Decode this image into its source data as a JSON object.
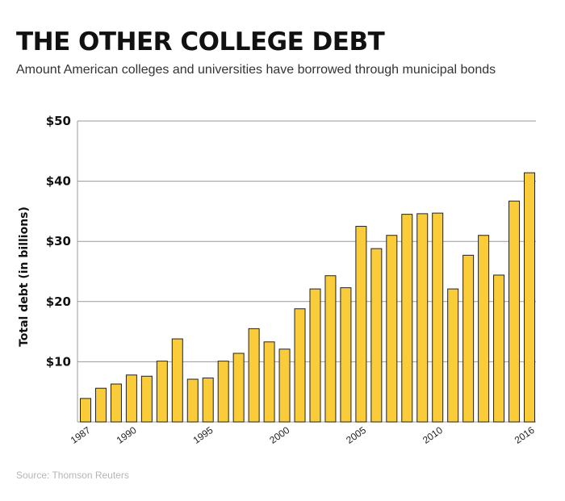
{
  "title": "THE OTHER COLLEGE DEBT",
  "subtitle": "Amount American colleges and universities have borrowed through municipal bonds",
  "source": "Source: Thomson Reuters",
  "colors": {
    "bar_fill": "#fbcc3a",
    "bar_stroke": "#222222",
    "grid": "#9a9a9a",
    "text": "#111111"
  },
  "chart_data": {
    "type": "bar",
    "title": "THE OTHER COLLEGE DEBT",
    "subtitle": "Amount American colleges and universities have borrowed through municipal bonds",
    "ylabel": "Total debt (in billions)",
    "xlabel": "",
    "ylim": [
      0,
      50
    ],
    "yticks": [
      10,
      20,
      30,
      40,
      50
    ],
    "ytick_labels": [
      "$10",
      "$20",
      "$30",
      "$40",
      "$50"
    ],
    "categories": [
      1987,
      1988,
      1989,
      1990,
      1991,
      1992,
      1993,
      1994,
      1995,
      1996,
      1997,
      1998,
      1999,
      2000,
      2001,
      2002,
      2003,
      2004,
      2005,
      2006,
      2007,
      2008,
      2009,
      2010,
      2011,
      2012,
      2013,
      2014,
      2015,
      2016
    ],
    "values": [
      3.9,
      5.6,
      6.3,
      7.8,
      7.6,
      10.1,
      13.8,
      7.1,
      7.3,
      10.1,
      11.4,
      15.5,
      13.3,
      12.1,
      18.8,
      22.1,
      24.3,
      22.3,
      32.5,
      28.8,
      31.0,
      34.5,
      34.6,
      34.7,
      22.1,
      27.7,
      31.0,
      24.4,
      36.7,
      41.4
    ],
    "xtick_labels": [
      {
        "year": 1987,
        "label": "1987"
      },
      {
        "year": 1990,
        "label": "1990"
      },
      {
        "year": 1995,
        "label": "1995"
      },
      {
        "year": 2000,
        "label": "2000"
      },
      {
        "year": 2005,
        "label": "2005"
      },
      {
        "year": 2010,
        "label": "2010"
      },
      {
        "year": 2016,
        "label": "2016"
      }
    ],
    "grid": true
  }
}
